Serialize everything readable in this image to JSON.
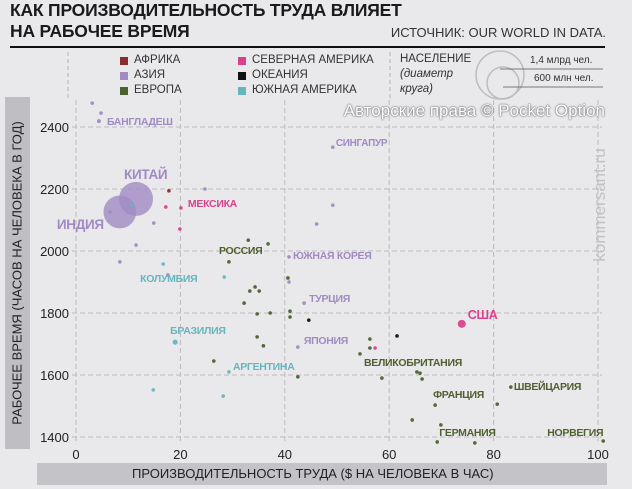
{
  "chart_data": {
    "type": "scatter",
    "title": "КАК ПРОИЗВОДИТЕЛЬНОСТЬ ТРУДА ВЛИЯЕТ НА РАБОЧЕЕ ВРЕМЯ",
    "title_lines": [
      "КАК ПРОИЗВОДИТЕЛЬНОСТЬ ТРУДА ВЛИЯЕТ",
      "НА РАБОЧЕЕ ВРЕМЯ"
    ],
    "source": "ИСТОЧНИК: OUR WORLD IN DATA.",
    "xlabel": "ПРОИЗВОДИТЕЛЬНОСТЬ ТРУДА ($ НА ЧЕЛОВЕКА В ЧАС)",
    "ylabel": "РАБОЧЕЕ ВРЕМЯ (ЧАСОВ НА ЧЕЛОВЕКА В ГОД)",
    "xlim": [
      0,
      100
    ],
    "ylim": [
      1400,
      2400
    ],
    "xticks": [
      "0",
      "20",
      "40",
      "60",
      "80",
      "100"
    ],
    "yticks": [
      "2400",
      "2200",
      "2000",
      "1800",
      "1600",
      "1400"
    ],
    "grid": true,
    "legend_position": "top",
    "regions": [
      {
        "name": "АФРИКА",
        "color": "#8b2c2c"
      },
      {
        "name": "АЗИЯ",
        "color": "#a08bc4"
      },
      {
        "name": "ЕВРОПА",
        "color": "#4d6130"
      },
      {
        "name": "СЕВЕРНАЯ АМЕРИКА",
        "color": "#d8428d"
      },
      {
        "name": "ОКЕАНИЯ",
        "color": "#111111"
      },
      {
        "name": "ЮЖНАЯ АМЕРИКА",
        "color": "#67b6bf"
      }
    ],
    "size_legend": {
      "title": "НАСЕЛЕНИЕ",
      "subtitle": "(диаметр круга)",
      "large": "1,4 млрд чел.",
      "small": "600 млн чел."
    },
    "points": [
      {
        "region": "АЗИЯ",
        "x": 4.4,
        "y": 2419,
        "pop": 165,
        "label": "БАНГЛАДЕШ"
      },
      {
        "region": "АЗИЯ",
        "x": 4.8,
        "y": 2445,
        "pop": 40
      },
      {
        "region": "АЗИЯ",
        "x": 3.1,
        "y": 2477,
        "pop": 20
      },
      {
        "region": "АЗИЯ",
        "x": 8.4,
        "y": 2126,
        "pop": 1350,
        "label": "ИНДИЯ"
      },
      {
        "region": "АЗИЯ",
        "x": 11.5,
        "y": 2168,
        "pop": 1400,
        "label": "КИТАЙ"
      },
      {
        "region": "АЗИЯ",
        "x": 9.6,
        "y": 2168,
        "pop": 60
      },
      {
        "region": "АЗИЯ",
        "x": 6.5,
        "y": 2126,
        "pop": 60
      },
      {
        "region": "АЗИЯ",
        "x": 14.9,
        "y": 2090,
        "pop": 60
      },
      {
        "region": "АЗИЯ",
        "x": 11.5,
        "y": 2019,
        "pop": 100
      },
      {
        "region": "АЗИЯ",
        "x": 8.4,
        "y": 1965,
        "pop": 100
      },
      {
        "region": "АЗИЯ",
        "x": 17.6,
        "y": 1923,
        "pop": 20
      },
      {
        "region": "АЗИЯ",
        "x": 24.7,
        "y": 2200,
        "pop": 20
      },
      {
        "region": "АЗИЯ",
        "x": 49.2,
        "y": 2335,
        "pop": 20,
        "label": "СИНГАПУР"
      },
      {
        "region": "АЗИЯ",
        "x": 49.2,
        "y": 2148,
        "pop": 20
      },
      {
        "region": "АЗИЯ",
        "x": 46.1,
        "y": 2087,
        "pop": 20
      },
      {
        "region": "АЗИЯ",
        "x": 40.8,
        "y": 1981,
        "pop": 50,
        "label": "ЮЖНАЯ КОРЕЯ"
      },
      {
        "region": "АЗИЯ",
        "x": 40.8,
        "y": 1900,
        "pop": 20
      },
      {
        "region": "АЗИЯ",
        "x": 43.7,
        "y": 1832,
        "pop": 80,
        "label": "ТУРЦИЯ"
      },
      {
        "region": "АЗИЯ",
        "x": 42.5,
        "y": 1690,
        "pop": 125,
        "label": "ЯПОНИЯ"
      },
      {
        "region": "АФРИКА",
        "x": 17.8,
        "y": 2194,
        "pop": 40
      },
      {
        "region": "СЕВЕРНАЯ АМЕРИКА",
        "x": 20.1,
        "y": 2139,
        "pop": 125,
        "label": "МЕКСИКА"
      },
      {
        "region": "СЕВЕРНАЯ АМЕРИКА",
        "x": 17.2,
        "y": 2142,
        "pop": 20
      },
      {
        "region": "СЕВЕРНАЯ АМЕРИКА",
        "x": 19.9,
        "y": 2071,
        "pop": 20
      },
      {
        "region": "СЕВЕРНАЯ АМЕРИКА",
        "x": 73.9,
        "y": 1765,
        "pop": 330,
        "label": "США"
      },
      {
        "region": "СЕВЕРНАЯ АМЕРИКА",
        "x": 57.3,
        "y": 1687,
        "pop": 35
      },
      {
        "region": "ЮЖНАЯ АМЕРИКА",
        "x": 10.7,
        "y": 2148,
        "pop": 40
      },
      {
        "region": "ЮЖНАЯ АМЕРИКА",
        "x": 16.7,
        "y": 1958,
        "pop": 45,
        "label": "КОЛУМБИЯ"
      },
      {
        "region": "ЮЖНАЯ АМЕРИКА",
        "x": 19.0,
        "y": 1706,
        "pop": 210,
        "label": "БРАЗИЛИЯ"
      },
      {
        "region": "ЮЖНАЯ АМЕРИКА",
        "x": 29.3,
        "y": 1610,
        "pop": 45,
        "label": "АРГЕНТИНА"
      },
      {
        "region": "ЮЖНАЯ АМЕРИКА",
        "x": 28.4,
        "y": 1916,
        "pop": 20
      },
      {
        "region": "ЮЖНАЯ АМЕРИКА",
        "x": 14.8,
        "y": 1552,
        "pop": 20
      },
      {
        "region": "ЮЖНАЯ АМЕРИКА",
        "x": 28.2,
        "y": 1532,
        "pop": 20
      },
      {
        "region": "ОКЕАНИЯ",
        "x": 44.6,
        "y": 1777,
        "pop": 20
      },
      {
        "region": "ОКЕАНИЯ",
        "x": 61.5,
        "y": 1726,
        "pop": 25
      },
      {
        "region": "ЕВРОПА",
        "x": 29.3,
        "y": 1965,
        "pop": 145,
        "label": "РОССИЯ"
      },
      {
        "region": "ЕВРОПА",
        "x": 36.8,
        "y": 2023,
        "pop": 40
      },
      {
        "region": "ЕВРОПА",
        "x": 33.0,
        "y": 2035,
        "pop": 20
      },
      {
        "region": "ЕВРОПА",
        "x": 40.6,
        "y": 1913,
        "pop": 20
      },
      {
        "region": "ЕВРОПА",
        "x": 34.3,
        "y": 1884,
        "pop": 20
      },
      {
        "region": "ЕВРОПА",
        "x": 33.3,
        "y": 1871,
        "pop": 20
      },
      {
        "region": "ЕВРОПА",
        "x": 35.1,
        "y": 1871,
        "pop": 20
      },
      {
        "region": "ЕВРОПА",
        "x": 32.2,
        "y": 1832,
        "pop": 20
      },
      {
        "region": "ЕВРОПА",
        "x": 34.7,
        "y": 1797,
        "pop": 20
      },
      {
        "region": "ЕВРОПА",
        "x": 37.2,
        "y": 1800,
        "pop": 20
      },
      {
        "region": "ЕВРОПА",
        "x": 41.0,
        "y": 1806,
        "pop": 20
      },
      {
        "region": "ЕВРОПА",
        "x": 41.0,
        "y": 1787,
        "pop": 20
      },
      {
        "region": "ЕВРОПА",
        "x": 34.7,
        "y": 1723,
        "pop": 20
      },
      {
        "region": "ЕВРОПА",
        "x": 35.9,
        "y": 1694,
        "pop": 20
      },
      {
        "region": "ЕВРОПА",
        "x": 26.4,
        "y": 1645,
        "pop": 20
      },
      {
        "region": "ЕВРОПА",
        "x": 42.5,
        "y": 1594,
        "pop": 20
      },
      {
        "region": "ЕВРОПА",
        "x": 56.3,
        "y": 1716,
        "pop": 60
      },
      {
        "region": "ЕВРОПА",
        "x": 56.3,
        "y": 1687,
        "pop": 45
      },
      {
        "region": "ЕВРОПА",
        "x": 54.4,
        "y": 1668,
        "pop": 67,
        "label": "ВЕЛИКОБРИТАНИЯ"
      },
      {
        "region": "ЕВРОПА",
        "x": 58.6,
        "y": 1590,
        "pop": 20
      },
      {
        "region": "ЕВРОПА",
        "x": 65.3,
        "y": 1610,
        "pop": 20
      },
      {
        "region": "ЕВРОПА",
        "x": 65.9,
        "y": 1606,
        "pop": 20
      },
      {
        "region": "ЕВРОПА",
        "x": 66.3,
        "y": 1587,
        "pop": 20
      },
      {
        "region": "ЕВРОПА",
        "x": 68.8,
        "y": 1503,
        "pop": 67,
        "label": "ФРАНЦИЯ"
      },
      {
        "region": "ЕВРОПА",
        "x": 64.4,
        "y": 1455,
        "pop": 20
      },
      {
        "region": "ЕВРОПА",
        "x": 69.9,
        "y": 1439,
        "pop": 20
      },
      {
        "region": "ЕВРОПА",
        "x": 69.2,
        "y": 1384,
        "pop": 83,
        "label": "ГЕРМАНИЯ"
      },
      {
        "region": "ЕВРОПА",
        "x": 76.4,
        "y": 1381,
        "pop": 20
      },
      {
        "region": "ЕВРОПА",
        "x": 80.7,
        "y": 1506,
        "pop": 20
      },
      {
        "region": "ЕВРОПА",
        "x": 83.3,
        "y": 1561,
        "pop": 20,
        "label": "ШВЕЙЦАРИЯ"
      },
      {
        "region": "ЕВРОПА",
        "x": 101,
        "y": 1387,
        "pop": 20,
        "label": "НОРВЕГИЯ"
      }
    ]
  },
  "branding": {
    "side_watermark": "kommersant.ru",
    "copyright": "Авторские права © Pocket Option"
  }
}
